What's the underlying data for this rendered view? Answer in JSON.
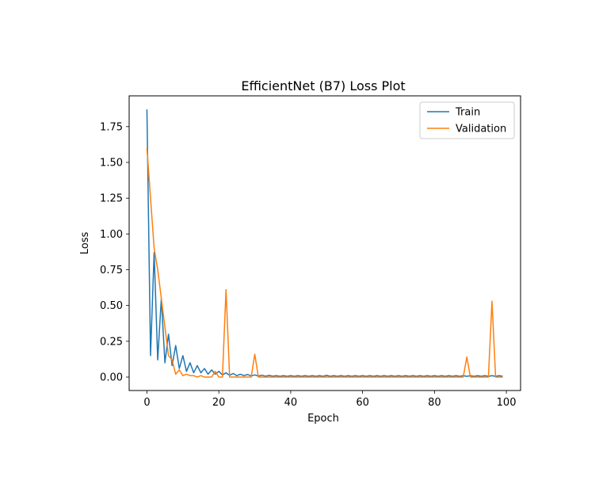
{
  "chart_data": {
    "type": "line",
    "title": "EfficientNet (B7) Loss Plot",
    "xlabel": "Epoch",
    "ylabel": "Loss",
    "xlim": [
      -4.95,
      103.95
    ],
    "ylim": [
      -0.094,
      1.965
    ],
    "x_ticks": [
      0,
      20,
      40,
      60,
      80,
      100
    ],
    "y_ticks": [
      0.0,
      0.25,
      0.5,
      0.75,
      1.0,
      1.25,
      1.5,
      1.75
    ],
    "grid": false,
    "legend_position": "upper-right",
    "x": [
      0,
      1,
      2,
      3,
      4,
      5,
      6,
      7,
      8,
      9,
      10,
      11,
      12,
      13,
      14,
      15,
      16,
      17,
      18,
      19,
      20,
      21,
      22,
      23,
      24,
      25,
      26,
      27,
      28,
      29,
      30,
      31,
      32,
      33,
      34,
      35,
      36,
      37,
      38,
      39,
      40,
      41,
      42,
      43,
      44,
      45,
      46,
      47,
      48,
      49,
      50,
      51,
      52,
      53,
      54,
      55,
      56,
      57,
      58,
      59,
      60,
      61,
      62,
      63,
      64,
      65,
      66,
      67,
      68,
      69,
      70,
      71,
      72,
      73,
      74,
      75,
      76,
      77,
      78,
      79,
      80,
      81,
      82,
      83,
      84,
      85,
      86,
      87,
      88,
      89,
      90,
      91,
      92,
      93,
      94,
      95,
      96,
      97,
      98,
      99
    ],
    "series": [
      {
        "name": "Train",
        "color": "#1f77b4",
        "values": [
          1.87,
          0.15,
          0.87,
          0.12,
          0.55,
          0.1,
          0.3,
          0.08,
          0.22,
          0.06,
          0.15,
          0.04,
          0.1,
          0.03,
          0.08,
          0.03,
          0.06,
          0.02,
          0.05,
          0.02,
          0.04,
          0.015,
          0.03,
          0.012,
          0.025,
          0.01,
          0.02,
          0.01,
          0.018,
          0.008,
          0.015,
          0.007,
          0.013,
          0.006,
          0.012,
          0.006,
          0.01,
          0.005,
          0.01,
          0.005,
          0.01,
          0.005,
          0.01,
          0.005,
          0.01,
          0.005,
          0.01,
          0.005,
          0.01,
          0.005,
          0.012,
          0.005,
          0.01,
          0.005,
          0.01,
          0.005,
          0.01,
          0.005,
          0.01,
          0.005,
          0.01,
          0.005,
          0.01,
          0.005,
          0.01,
          0.005,
          0.01,
          0.005,
          0.01,
          0.005,
          0.01,
          0.005,
          0.01,
          0.005,
          0.01,
          0.005,
          0.01,
          0.005,
          0.01,
          0.005,
          0.01,
          0.005,
          0.01,
          0.005,
          0.01,
          0.005,
          0.01,
          0.005,
          0.01,
          0.005,
          0.01,
          0.005,
          0.01,
          0.005,
          0.01,
          0.005,
          0.01,
          0.005,
          0.01,
          0.005
        ]
      },
      {
        "name": "Validation",
        "color": "#ff7f0e",
        "values": [
          1.6,
          1.25,
          0.9,
          0.75,
          0.55,
          0.35,
          0.15,
          0.12,
          0.02,
          0.05,
          0.01,
          0.02,
          0.01,
          0.01,
          0.0,
          0.01,
          0.0,
          0.0,
          0.0,
          0.04,
          0.0,
          0.0,
          0.61,
          0.0,
          0.0,
          0.0,
          0.0,
          0.0,
          0.0,
          0.0,
          0.16,
          0.0,
          0.0,
          0.0,
          0.0,
          0.0,
          0.0,
          0.0,
          0.0,
          0.0,
          0.0,
          0.0,
          0.0,
          0.0,
          0.0,
          0.0,
          0.0,
          0.0,
          0.0,
          0.0,
          0.0,
          0.0,
          0.0,
          0.0,
          0.0,
          0.0,
          0.0,
          0.0,
          0.0,
          0.0,
          0.0,
          0.0,
          0.0,
          0.0,
          0.0,
          0.0,
          0.0,
          0.0,
          0.0,
          0.0,
          0.0,
          0.0,
          0.0,
          0.0,
          0.0,
          0.0,
          0.0,
          0.0,
          0.0,
          0.0,
          0.0,
          0.0,
          0.0,
          0.0,
          0.0,
          0.0,
          0.0,
          0.0,
          0.0,
          0.14,
          0.0,
          0.0,
          0.0,
          0.0,
          0.0,
          0.0,
          0.53,
          0.0,
          0.0,
          0.0
        ]
      }
    ]
  }
}
